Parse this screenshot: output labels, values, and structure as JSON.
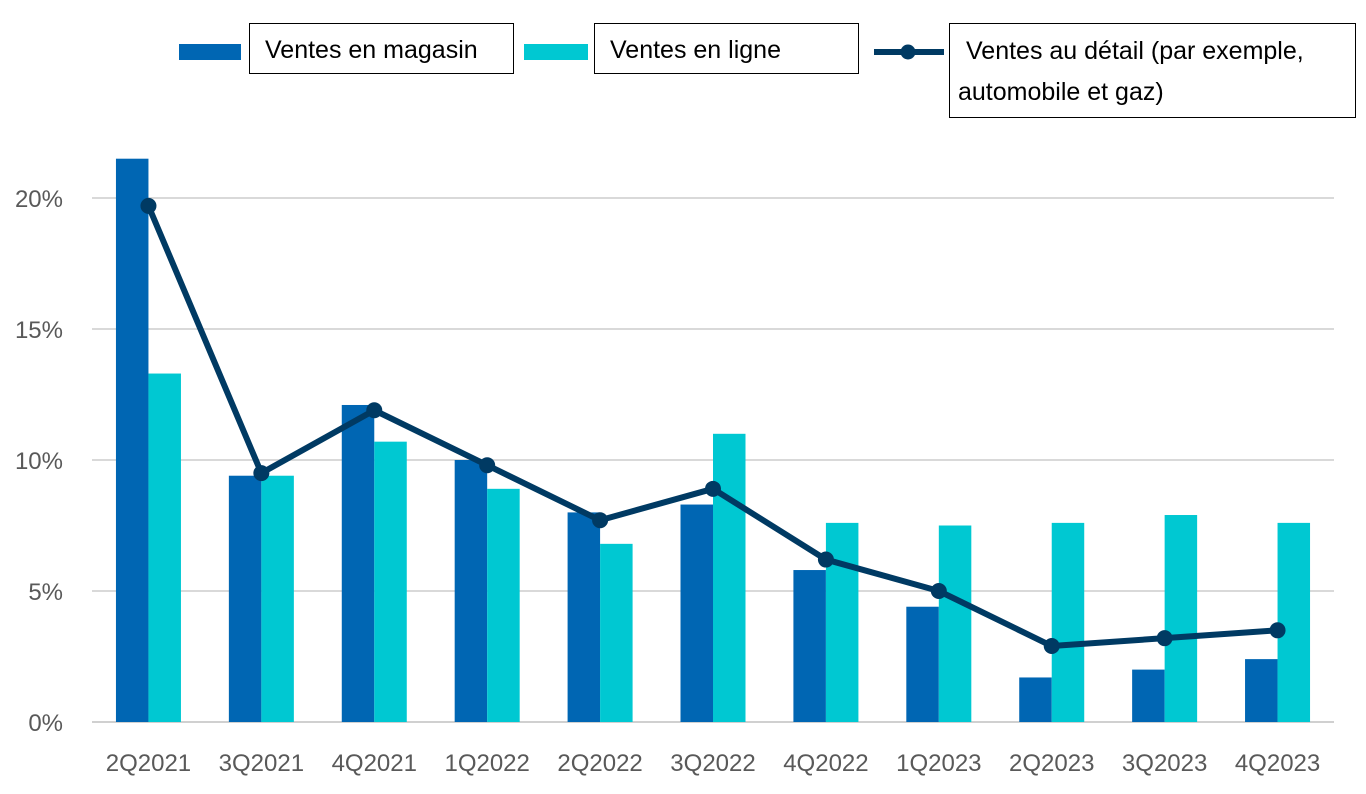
{
  "chart_data": {
    "type": "bar",
    "categories": [
      "2Q2021",
      "3Q2021",
      "4Q2021",
      "1Q2022",
      "2Q2022",
      "3Q2022",
      "4Q2022",
      "1Q2023",
      "2Q2023",
      "3Q2023",
      "4Q2023"
    ],
    "series": [
      {
        "name": "Ventes en magasin",
        "type": "bar",
        "color": "#0066b3",
        "values": [
          21.5,
          9.4,
          12.1,
          10.0,
          8.0,
          8.3,
          5.8,
          4.4,
          1.7,
          2.0,
          2.4
        ]
      },
      {
        "name": "Ventes en ligne",
        "type": "bar",
        "color": "#00c8d2",
        "values": [
          13.3,
          9.4,
          10.7,
          8.9,
          6.8,
          11.0,
          7.6,
          7.5,
          7.6,
          7.9,
          7.6
        ]
      },
      {
        "name": "Ventes au détail (par exemple, automobile et gaz)",
        "type": "line",
        "color": "#003a63",
        "values": [
          19.7,
          9.5,
          11.9,
          9.8,
          7.7,
          8.9,
          6.2,
          5.0,
          2.9,
          3.2,
          3.5
        ]
      }
    ],
    "ylim": [
      0,
      20
    ],
    "yticks": [
      "0%",
      "5%",
      "10%",
      "15%",
      "20%"
    ],
    "ytick_values": [
      0,
      5,
      10,
      15,
      20
    ],
    "grid": true,
    "legend": "top"
  },
  "legend": {
    "item1": "Ventes en magasin",
    "item2": "Ventes en ligne",
    "item3_line1": "Ventes au détail (par exemple,",
    "item3_line2": "automobile et gaz)"
  }
}
